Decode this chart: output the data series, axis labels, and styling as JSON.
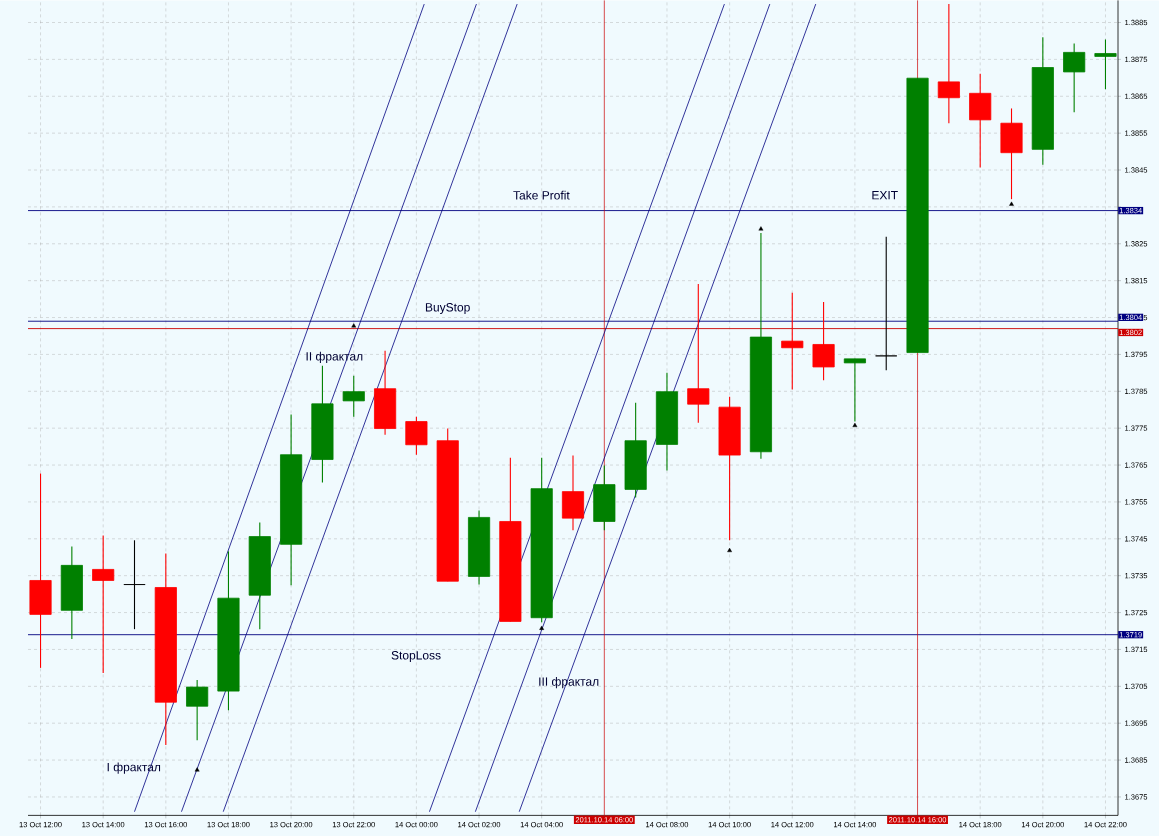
{
  "chart_data": {
    "type": "candlestick",
    "x": [
      "2011-10-13T12:00",
      "2011-10-13T13:00",
      "2011-10-13T14:00",
      "2011-10-13T15:00",
      "2011-10-13T16:00",
      "2011-10-13T17:00",
      "2011-10-13T18:00",
      "2011-10-13T19:00",
      "2011-10-13T20:00",
      "2011-10-13T21:00",
      "2011-10-13T22:00",
      "2011-10-13T23:00",
      "2011-10-14T00:00",
      "2011-10-14T01:00",
      "2011-10-14T02:00",
      "2011-10-14T03:00",
      "2011-10-14T04:00",
      "2011-10-14T05:00",
      "2011-10-14T06:00",
      "2011-10-14T07:00",
      "2011-10-14T08:00",
      "2011-10-14T09:00",
      "2011-10-14T10:00",
      "2011-10-14T11:00",
      "2011-10-14T12:00",
      "2011-10-14T13:00",
      "2011-10-14T14:00",
      "2011-10-14T15:00",
      "2011-10-14T16:00",
      "2011-10-14T17:00",
      "2011-10-14T18:00",
      "2011-10-14T19:00",
      "2011-10-14T20:00",
      "2011-10-14T21:00",
      "2011-10-14T22:00"
    ],
    "ohlc": [
      [
        1.37337,
        1.37627,
        1.371,
        1.37245
      ],
      [
        1.37256,
        1.37429,
        1.37178,
        1.37378
      ],
      [
        1.37367,
        1.37459,
        1.37086,
        1.37337
      ],
      [
        1.37326,
        1.37446,
        1.37205,
        1.37326
      ],
      [
        1.37318,
        1.3741,
        1.36891,
        1.37007
      ],
      [
        1.36996,
        1.37067,
        1.36904,
        1.37048
      ],
      [
        1.37037,
        1.37416,
        1.36985,
        1.37289
      ],
      [
        1.37297,
        1.37494,
        1.37205,
        1.37456
      ],
      [
        1.37435,
        1.37787,
        1.37324,
        1.37678
      ],
      [
        1.37665,
        1.37919,
        1.37603,
        1.37816
      ],
      [
        1.37824,
        1.37892,
        1.37781,
        1.37849
      ],
      [
        1.37857,
        1.3796,
        1.37732,
        1.37749
      ],
      [
        1.37768,
        1.37781,
        1.37678,
        1.37705
      ],
      [
        1.37716,
        1.37749,
        1.37335,
        1.37335
      ],
      [
        1.37348,
        1.37527,
        1.37326,
        1.37508
      ],
      [
        1.37497,
        1.3767,
        1.37226,
        1.37226
      ],
      [
        1.37236,
        1.3767,
        1.37224,
        1.37586
      ],
      [
        1.37578,
        1.37676,
        1.37473,
        1.37506
      ],
      [
        1.37497,
        1.37649,
        1.37473,
        1.37597
      ],
      [
        1.37584,
        1.37819,
        1.37562,
        1.37716
      ],
      [
        1.37706,
        1.379,
        1.37635,
        1.37849
      ],
      [
        1.37857,
        1.38141,
        1.37765,
        1.37815
      ],
      [
        1.37807,
        1.37835,
        1.37446,
        1.37677
      ],
      [
        1.37686,
        1.38279,
        1.37667,
        1.37997
      ],
      [
        1.37986,
        1.38117,
        1.37855,
        1.37968
      ],
      [
        1.37977,
        1.38092,
        1.3788,
        1.37916
      ],
      [
        1.37927,
        1.37938,
        1.37768,
        1.37938
      ],
      [
        1.37946,
        1.38269,
        1.37907,
        1.37946
      ],
      [
        1.37955,
        1.38699,
        1.37955,
        1.38699
      ],
      [
        1.38689,
        1.389,
        1.38577,
        1.38646
      ],
      [
        1.38658,
        1.38711,
        1.38457,
        1.38586
      ],
      [
        1.38577,
        1.38617,
        1.38371,
        1.38497
      ],
      [
        1.38506,
        1.3881,
        1.38464,
        1.38728
      ],
      [
        1.38716,
        1.38793,
        1.38607,
        1.38769
      ],
      [
        1.38758,
        1.38804,
        1.38669,
        1.38766
      ]
    ],
    "colors": [
      "#ff0000",
      "#008000",
      "#ff0000",
      "#000000",
      "#ff0000",
      "#008000",
      "#008000",
      "#008000",
      "#008000",
      "#008000",
      "#008000",
      "#ff0000",
      "#ff0000",
      "#ff0000",
      "#008000",
      "#ff0000",
      "#008000",
      "#ff0000",
      "#008000",
      "#008000",
      "#008000",
      "#ff0000",
      "#ff0000",
      "#008000",
      "#ff0000",
      "#ff0000",
      "#008000",
      "#000000",
      "#008000",
      "#ff0000",
      "#ff0000",
      "#ff0000",
      "#008000",
      "#008000",
      "#008000"
    ],
    "series": [
      {
        "type": "line",
        "color": "#000080",
        "x": [
          "2011-10-13T15:00",
          "2011-10-14T00:15"
        ],
        "values": [
          1.3671,
          1.389
        ]
      },
      {
        "type": "line",
        "color": "#000080",
        "x": [
          "2011-10-13T16:30",
          "2011-10-14T01:55"
        ],
        "values": [
          1.3671,
          1.389
        ]
      },
      {
        "type": "line",
        "color": "#000080",
        "x": [
          "2011-10-13T17:50",
          "2011-10-14T03:13"
        ],
        "values": [
          1.3671,
          1.389
        ]
      },
      {
        "type": "line",
        "color": "#000080",
        "x": [
          "2011-10-14T00:25",
          "2011-10-14T09:50"
        ],
        "values": [
          1.3671,
          1.389
        ]
      },
      {
        "type": "line",
        "color": "#000080",
        "x": [
          "2011-10-14T01:53",
          "2011-10-14T11:17"
        ],
        "values": [
          1.3671,
          1.389
        ]
      },
      {
        "type": "line",
        "color": "#000080",
        "x": [
          "2011-10-14T03:17",
          "2011-10-14T12:45"
        ],
        "values": [
          1.3671,
          1.389
        ]
      },
      {
        "type": "scatter",
        "color": "#000000",
        "marker": "triangle",
        "x": [
          "2011-10-13T22:00",
          "2011-10-14T11:00"
        ],
        "values": [
          1.38027,
          1.3829
        ]
      },
      {
        "type": "scatter",
        "color": "#000000",
        "marker": "triangle",
        "x": [
          "2011-10-13T17:00",
          "2011-10-14T04:00",
          "2011-10-14T10:00",
          "2011-10-14T14:00",
          "2011-10-14T19:00"
        ],
        "values": [
          1.36823,
          1.37207,
          1.37418,
          1.37757,
          1.38357
        ]
      }
    ],
    "xlim": [
      "2011-10-13T11:36",
      "2011-10-14T22:24"
    ],
    "xticks": [
      {
        "value": "2011-10-13T12:00",
        "label": "13 Oct 12:00"
      },
      {
        "value": "2011-10-13T14:00",
        "label": "13 Oct 14:00"
      },
      {
        "value": "2011-10-13T16:00",
        "label": "13 Oct 16:00"
      },
      {
        "value": "2011-10-13T18:00",
        "label": "13 Oct 18:00"
      },
      {
        "value": "2011-10-13T20:00",
        "label": "13 Oct 20:00"
      },
      {
        "value": "2011-10-13T22:00",
        "label": "13 Oct 22:00"
      },
      {
        "value": "2011-10-14T00:00",
        "label": "14 Oct 00:00"
      },
      {
        "value": "2011-10-14T02:00",
        "label": "14 Oct 02:00"
      },
      {
        "value": "2011-10-14T04:00",
        "label": "14 Oct 04:00"
      },
      {
        "value": "2011-10-14T08:00",
        "label": "14 Oct 08:00"
      },
      {
        "value": "2011-10-14T10:00",
        "label": "14 Oct 10:00"
      },
      {
        "value": "2011-10-14T12:00",
        "label": "14 Oct 12:00"
      },
      {
        "value": "2011-10-14T14:00",
        "label": "14 Oct 14:00"
      },
      {
        "value": "2011-10-14T18:00",
        "label": "14 Oct 18:00"
      },
      {
        "value": "2011-10-14T20:00",
        "label": "14 Oct 20:00"
      },
      {
        "value": "2011-10-14T22:00",
        "label": "14 Oct 22:00"
      }
    ],
    "ylim": [
      1.367,
      1.3891
    ],
    "yticks": [
      1.3675,
      1.3685,
      1.3695,
      1.3705,
      1.3715,
      1.3725,
      1.3735,
      1.3745,
      1.3755,
      1.3765,
      1.3775,
      1.3785,
      1.3795,
      1.3805,
      1.3815,
      1.3825,
      {
        "value": 1.3835,
        "label": null
      },
      1.3845,
      1.3855,
      1.3865,
      1.3875,
      1.3885
    ],
    "grid": true,
    "ref_lines": [
      {
        "axis": "y",
        "value": 1.3834,
        "label": "1.3834",
        "color": "#000080"
      },
      {
        "axis": "y",
        "value": 1.3804,
        "label": "1.3804",
        "color": "#000080"
      },
      {
        "axis": "y",
        "value": 1.3802,
        "label": "1.3802",
        "color": "#cc0000"
      },
      {
        "axis": "y",
        "value": 1.3719,
        "label": "1.3719",
        "color": "#000080"
      },
      {
        "axis": "x",
        "value": "2011-10-14T06:00",
        "label": "2011.10.14 06:00",
        "color": "#cc0000"
      },
      {
        "axis": "x",
        "value": "2011-10-14T16:00",
        "label": "2011.10.14 16:00",
        "color": "#cc0000"
      }
    ],
    "annotations": [
      "Take Profit",
      "BuyStop",
      "StopLoss",
      "EXIT",
      "I фрактал",
      "II фрактал",
      "III фрактал"
    ]
  }
}
